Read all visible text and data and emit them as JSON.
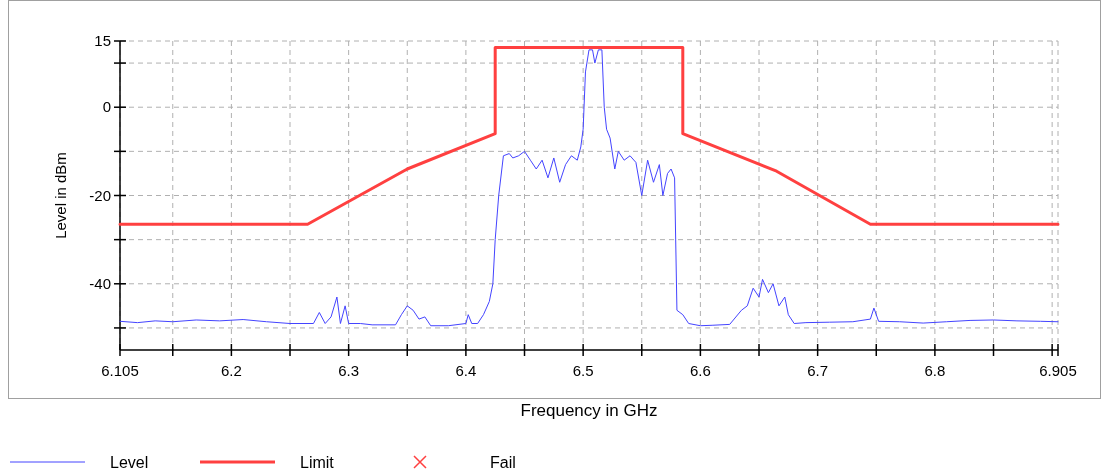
{
  "chart_data": {
    "type": "line",
    "xlabel": "Frequency in GHz",
    "ylabel": "Level in dBm",
    "xlim": [
      6.105,
      6.905
    ],
    "xticks": [
      6.105,
      {
        "value": 6.15,
        "label": null
      },
      6.2,
      {
        "value": 6.25,
        "label": null
      },
      6.3,
      {
        "value": 6.35,
        "label": null
      },
      6.4,
      {
        "value": 6.45,
        "label": null
      },
      6.5,
      {
        "value": 6.55,
        "label": null
      },
      6.6,
      {
        "value": 6.65,
        "label": null
      },
      6.7,
      {
        "value": 6.75,
        "label": null
      },
      6.8,
      {
        "value": 6.85,
        "label": null
      },
      {
        "value": 6.9,
        "label": null
      },
      6.905
    ],
    "ylim": [
      -55,
      15
    ],
    "yticks": [
      {
        "value": -50,
        "label": null
      },
      -40,
      {
        "value": -30,
        "label": null
      },
      -20,
      {
        "value": -10,
        "label": null
      },
      0,
      {
        "value": 10,
        "label": null
      },
      15
    ],
    "grid": true,
    "legend": "bottom left",
    "series": [
      {
        "name": "Level",
        "color": "#4444ff",
        "x": [
          6.105,
          6.12,
          6.135,
          6.15,
          6.17,
          6.19,
          6.21,
          6.23,
          6.25,
          6.27,
          6.275,
          6.28,
          6.285,
          6.29,
          6.293,
          6.297,
          6.3,
          6.31,
          6.32,
          6.34,
          6.345,
          6.35,
          6.355,
          6.36,
          6.365,
          6.37,
          6.385,
          6.4,
          6.402,
          6.405,
          6.41,
          6.415,
          6.42,
          6.423,
          6.425,
          6.428,
          6.432,
          6.437,
          6.44,
          6.445,
          6.45,
          6.455,
          6.46,
          6.465,
          6.47,
          6.475,
          6.48,
          6.485,
          6.49,
          6.495,
          6.498,
          6.5,
          6.502,
          6.505,
          6.508,
          6.51,
          6.513,
          6.516,
          6.518,
          6.52,
          6.523,
          6.527,
          6.53,
          6.535,
          6.54,
          6.545,
          6.55,
          6.555,
          6.56,
          6.565,
          6.568,
          6.572,
          6.575,
          6.578,
          6.58,
          6.585,
          6.59,
          6.6,
          6.61,
          6.625,
          6.635,
          6.64,
          6.645,
          6.65,
          6.653,
          6.658,
          6.662,
          6.667,
          6.672,
          6.675,
          6.68,
          6.69,
          6.71,
          6.73,
          6.745,
          6.748,
          6.752,
          6.77,
          6.79,
          6.81,
          6.83,
          6.85,
          6.87,
          6.89,
          6.905
        ],
        "values": [
          -48.5,
          -48.8,
          -48.4,
          -48.6,
          -48.2,
          -48.4,
          -48.1,
          -48.6,
          -49,
          -49,
          -46.5,
          -49,
          -47.5,
          -43,
          -49,
          -45,
          -49,
          -49,
          -49.3,
          -49.3,
          -47,
          -45,
          -46,
          -48,
          -47.5,
          -49.5,
          -49.5,
          -49,
          -47,
          -49,
          -49,
          -47,
          -44,
          -40,
          -30,
          -20,
          -11,
          -10.5,
          -11.5,
          -11,
          -10,
          -12,
          -14,
          -12,
          -16,
          -11.5,
          -17,
          -13,
          -11,
          -12,
          -9,
          -5,
          8,
          13,
          13,
          10,
          13,
          13,
          0,
          -5,
          -7,
          -14,
          -10,
          -12,
          -11,
          -12.5,
          -20,
          -12,
          -17,
          -13,
          -20,
          -15,
          -14,
          -16,
          -46,
          -47,
          -49,
          -49.5,
          -49.4,
          -49.2,
          -46,
          -45,
          -41,
          -43,
          -39,
          -42,
          -40,
          -45,
          -43,
          -47,
          -49,
          -48.8,
          -48.7,
          -48.6,
          -48,
          -45.5,
          -48.5,
          -48.6,
          -48.9,
          -48.6,
          -48.3,
          -48.2,
          -48.4,
          -48.5,
          -48.6
        ]
      },
      {
        "name": "Limit",
        "color": "#ff4040",
        "x": [
          6.105,
          6.265,
          6.35,
          6.425,
          6.425,
          6.585,
          6.585,
          6.665,
          6.745,
          6.905
        ],
        "values": [
          -26.5,
          -26.5,
          -14,
          -6,
          13.5,
          13.5,
          -6,
          -14.5,
          -26.5,
          -26.5
        ]
      }
    ],
    "annotations": [
      "Fail"
    ]
  }
}
